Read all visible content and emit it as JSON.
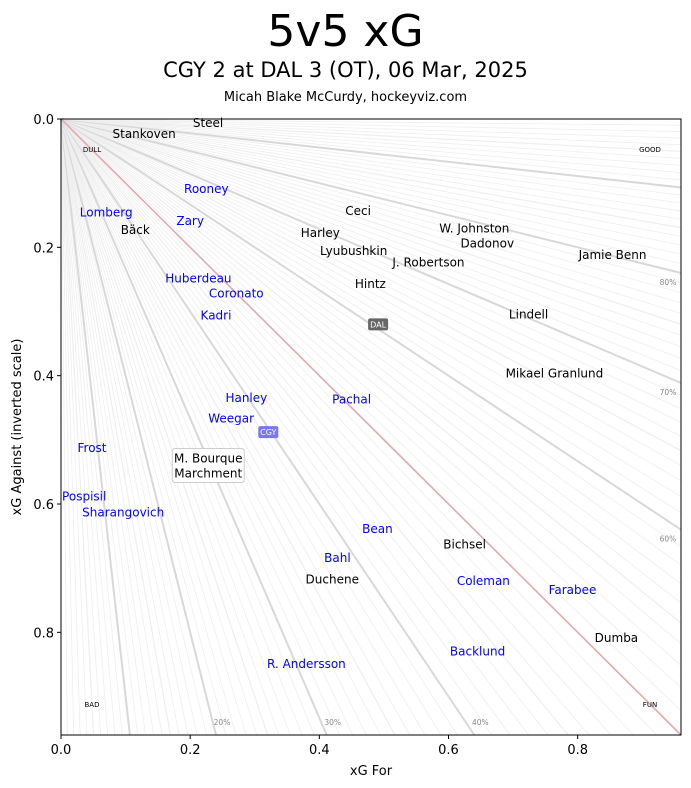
{
  "header": {
    "title": "5v5 xG",
    "subtitle": "CGY 2 at DAL 3 (OT), 06 Mar, 2025",
    "credit": "Micah Blake McCurdy, hockeyviz.com"
  },
  "chart_data": {
    "type": "scatter",
    "title": "5v5 xG",
    "xlabel": "xG For",
    "ylabel": "xG Against (inverted scale)",
    "xlim": [
      0,
      0.96
    ],
    "ylim": [
      0.96,
      0
    ],
    "y_inverted": true,
    "xticks": [
      "0.0",
      "0.2",
      "0.4",
      "0.6",
      "0.8"
    ],
    "yticks": [
      "0.0",
      "0.2",
      "0.4",
      "0.6",
      "0.8"
    ],
    "xtick_values": [
      0,
      0.2,
      0.4,
      0.6,
      0.8
    ],
    "ytick_values": [
      0,
      0.2,
      0.4,
      0.6,
      0.8
    ],
    "colors": {
      "CGY": "#0000ff",
      "DAL": "#000000",
      "even_line": "#e8a8a8",
      "ray": "#dddddd"
    },
    "corner_labels": {
      "top_left": "DULL",
      "top_right": "GOOD",
      "bottom_left": "BAD",
      "bottom_right": "FUN"
    },
    "pct_labels": [
      {
        "label": "80%",
        "p": 0.8,
        "edge": "right"
      },
      {
        "label": "70%",
        "p": 0.7,
        "edge": "right"
      },
      {
        "label": "60%",
        "p": 0.6,
        "edge": "right"
      },
      {
        "label": "20%",
        "p": 0.2,
        "edge": "bottom"
      },
      {
        "label": "30%",
        "p": 0.3,
        "edge": "bottom"
      },
      {
        "label": "40%",
        "p": 0.4,
        "edge": "bottom"
      }
    ],
    "team_markers": [
      {
        "team": "DAL",
        "x": 0.491,
        "y": 0.32,
        "color": "#666666"
      },
      {
        "team": "CGY",
        "x": 0.321,
        "y": 0.488,
        "color": "#7777ee"
      }
    ],
    "players": [
      {
        "name": "Steel",
        "team": "DAL",
        "x": 0.206,
        "y": 0.009
      },
      {
        "name": "Stankoven",
        "team": "DAL",
        "x": 0.138,
        "y": 0.02
      },
      {
        "name": "Rooney",
        "team": "CGY",
        "x": 0.225,
        "y": 0.109
      },
      {
        "name": "Lomberg",
        "team": "CGY",
        "x": 0.07,
        "y": 0.146
      },
      {
        "name": "Zary",
        "team": "CGY",
        "x": 0.2,
        "y": 0.159
      },
      {
        "name": "Bäck",
        "team": "DAL",
        "x": 0.115,
        "y": 0.173
      },
      {
        "name": "Ceci",
        "team": "DAL",
        "x": 0.46,
        "y": 0.143
      },
      {
        "name": "Harley",
        "team": "DAL",
        "x": 0.417,
        "y": 0.187
      },
      {
        "name": "Lyubushkin",
        "team": "DAL",
        "x": 0.447,
        "y": 0.201
      },
      {
        "name": "W. Johnston",
        "team": "DAL",
        "x": 0.64,
        "y": 0.171
      },
      {
        "name": "Dadonov",
        "team": "DAL",
        "x": 0.66,
        "y": 0.194
      },
      {
        "name": "J. Robertson",
        "team": "DAL",
        "x": 0.569,
        "y": 0.224
      },
      {
        "name": "Jamie Benn",
        "team": "DAL",
        "x": 0.854,
        "y": 0.212
      },
      {
        "name": "Hintz",
        "team": "DAL",
        "x": 0.479,
        "y": 0.257
      },
      {
        "name": "Huberdeau",
        "team": "CGY",
        "x": 0.222,
        "y": 0.269
      },
      {
        "name": "Coronato",
        "team": "CGY",
        "x": 0.259,
        "y": 0.269
      },
      {
        "name": "Kadri",
        "team": "CGY",
        "x": 0.24,
        "y": 0.306
      },
      {
        "name": "Lindell",
        "team": "DAL",
        "x": 0.724,
        "y": 0.305
      },
      {
        "name": "Mikael Granlund",
        "team": "DAL",
        "x": 0.764,
        "y": 0.397
      },
      {
        "name": "Hanley",
        "team": "CGY",
        "x": 0.287,
        "y": 0.435
      },
      {
        "name": "Pachal",
        "team": "CGY",
        "x": 0.45,
        "y": 0.437
      },
      {
        "name": "Weegar",
        "team": "CGY",
        "x": 0.282,
        "y": 0.473
      },
      {
        "name": "Frost",
        "team": "CGY",
        "x": 0.048,
        "y": 0.513
      },
      {
        "name": "Pospisil",
        "team": "CGY",
        "x": 0.039,
        "y": 0.61
      },
      {
        "name": "Sharangovich",
        "team": "CGY",
        "x": 0.087,
        "y": 0.61
      },
      {
        "name": "Bean",
        "team": "CGY",
        "x": 0.49,
        "y": 0.639
      },
      {
        "name": "Bichsel",
        "team": "DAL",
        "x": 0.625,
        "y": 0.663
      },
      {
        "name": "Bahl",
        "team": "CGY",
        "x": 0.428,
        "y": 0.684
      },
      {
        "name": "Duchene",
        "team": "DAL",
        "x": 0.42,
        "y": 0.718
      },
      {
        "name": "Coleman",
        "team": "CGY",
        "x": 0.654,
        "y": 0.72
      },
      {
        "name": "Farabee",
        "team": "CGY",
        "x": 0.792,
        "y": 0.734
      },
      {
        "name": "Dumba",
        "team": "DAL",
        "x": 0.86,
        "y": 0.809
      },
      {
        "name": "Backlund",
        "team": "CGY",
        "x": 0.645,
        "y": 0.83
      },
      {
        "name": "R. Andersson",
        "team": "CGY",
        "x": 0.38,
        "y": 0.849
      }
    ],
    "boxed_group": {
      "names": [
        "M. Bourque",
        "Marchment"
      ],
      "team": "DAL",
      "x": 0.228,
      "y": 0.54
    }
  }
}
